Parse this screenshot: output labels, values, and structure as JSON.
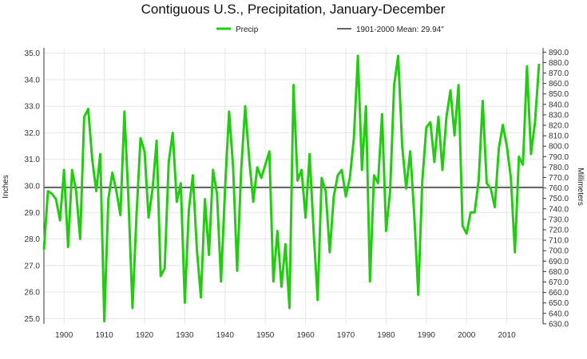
{
  "chart_data": {
    "type": "line",
    "title": "Contiguous U.S., Precipitation, January-December",
    "ylabel_left": "Inches",
    "ylabel_right": "Millimeters",
    "ylim": [
      24.8,
      35.2
    ],
    "yticks_left": [
      "25.0",
      "26.0",
      "27.0",
      "28.0",
      "29.0",
      "30.0",
      "31.0",
      "32.0",
      "33.0",
      "34.0",
      "35.0"
    ],
    "yticks_right": [
      "630.0",
      "640.0",
      "650.0",
      "660.0",
      "670.0",
      "680.0",
      "690.0",
      "700.0",
      "710.0",
      "720.0",
      "730.0",
      "740.0",
      "750.0",
      "760.0",
      "770.0",
      "780.0",
      "790.0",
      "800.0",
      "810.0",
      "820.0",
      "830.0",
      "840.0",
      "850.0",
      "860.0",
      "870.0",
      "880.0",
      "890.0"
    ],
    "xlim": [
      1895,
      2019
    ],
    "xticks": [
      "1900",
      "1910",
      "1920",
      "1930",
      "1940",
      "1950",
      "1960",
      "1970",
      "1980",
      "1990",
      "2000",
      "2010"
    ],
    "legend": [
      "Precip",
      "1901-2000 Mean: 29.94\""
    ],
    "colors": {
      "precip": "#22cc11",
      "mean": "#666666"
    },
    "series": [
      {
        "name": "Precip",
        "x": [
          1895,
          1896,
          1897,
          1898,
          1899,
          1900,
          1901,
          1902,
          1903,
          1904,
          1905,
          1906,
          1907,
          1908,
          1909,
          1910,
          1911,
          1912,
          1913,
          1914,
          1915,
          1916,
          1917,
          1918,
          1919,
          1920,
          1921,
          1922,
          1923,
          1924,
          1925,
          1926,
          1927,
          1928,
          1929,
          1930,
          1931,
          1932,
          1933,
          1934,
          1935,
          1936,
          1937,
          1938,
          1939,
          1940,
          1941,
          1942,
          1943,
          1944,
          1945,
          1946,
          1947,
          1948,
          1949,
          1950,
          1951,
          1952,
          1953,
          1954,
          1955,
          1956,
          1957,
          1958,
          1959,
          1960,
          1961,
          1962,
          1963,
          1964,
          1965,
          1966,
          1967,
          1968,
          1969,
          1970,
          1971,
          1972,
          1973,
          1974,
          1975,
          1976,
          1977,
          1978,
          1979,
          1980,
          1981,
          1982,
          1983,
          1984,
          1985,
          1986,
          1987,
          1988,
          1989,
          1990,
          1991,
          1992,
          1993,
          1994,
          1995,
          1996,
          1997,
          1998,
          1999,
          2000,
          2001,
          2002,
          2003,
          2004,
          2005,
          2006,
          2007,
          2008,
          2009,
          2010,
          2011,
          2012,
          2013,
          2014,
          2015,
          2016,
          2017,
          2018
        ],
        "values": [
          27.6,
          29.8,
          29.7,
          29.5,
          28.7,
          30.6,
          27.7,
          30.6,
          29.8,
          28.0,
          32.6,
          32.9,
          31.0,
          29.8,
          31.2,
          24.9,
          29.5,
          30.5,
          29.8,
          28.9,
          32.8,
          29.5,
          25.4,
          28.9,
          31.8,
          31.3,
          28.8,
          29.9,
          31.7,
          26.6,
          26.9,
          30.9,
          32.0,
          29.4,
          30.1,
          25.6,
          29.1,
          30.4,
          27.6,
          25.8,
          29.5,
          27.4,
          30.6,
          29.7,
          26.4,
          29.9,
          32.8,
          30.7,
          26.8,
          30.6,
          33.0,
          31.0,
          29.4,
          30.7,
          30.3,
          30.8,
          31.3,
          26.4,
          28.3,
          26.2,
          27.8,
          25.4,
          33.8,
          30.2,
          30.6,
          28.8,
          31.2,
          28.3,
          25.7,
          30.3,
          29.8,
          27.5,
          29.6,
          30.4,
          30.6,
          29.6,
          30.3,
          31.8,
          34.9,
          30.6,
          33.0,
          26.4,
          30.4,
          30.1,
          32.7,
          28.3,
          29.8,
          33.8,
          34.9,
          31.5,
          29.9,
          31.3,
          28.9,
          25.9,
          30.2,
          32.2,
          32.4,
          30.9,
          32.6,
          30.6,
          32.6,
          33.6,
          31.9,
          33.8,
          28.5,
          28.2,
          29.0,
          29.0,
          30.2,
          33.2,
          30.1,
          29.9,
          29.2,
          31.4,
          32.3,
          31.5,
          30.3,
          27.5,
          31.1,
          30.8,
          34.5,
          31.2,
          32.4,
          34.6
        ]
      }
    ],
    "mean_value": 29.94
  }
}
